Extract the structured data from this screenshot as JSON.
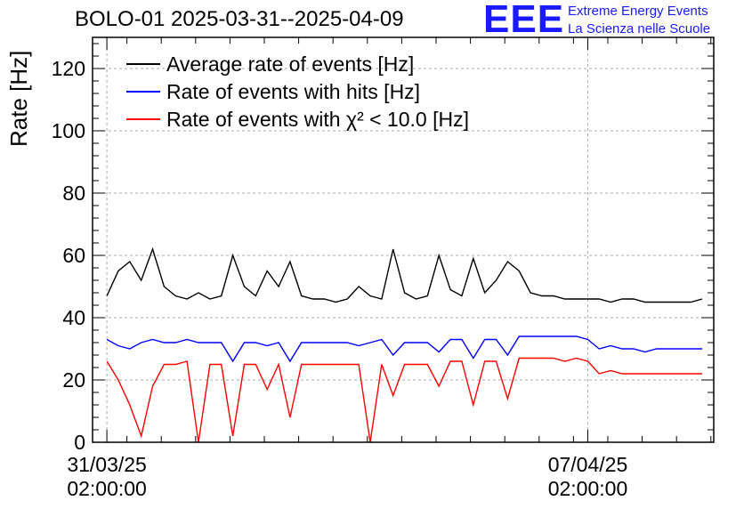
{
  "title": "BOLO-01 2025-03-31--2025-04-09",
  "logo": {
    "letters": "EEE",
    "line1": "Extreme Energy Events",
    "line2": "La Scienza nelle Scuole",
    "color": "#1a1aff"
  },
  "chart_data": {
    "type": "line",
    "title": "BOLO-01 2025-03-31--2025-04-09",
    "xlabel": "",
    "ylabel": "Rate [Hz]",
    "ylim": [
      0,
      130
    ],
    "yticks": [
      0,
      20,
      40,
      60,
      80,
      100,
      120
    ],
    "x_range_days": [
      "2025-03-30 21:00",
      "2025-04-08 22:00"
    ],
    "xticks": [
      {
        "label_line1": "31/03/25",
        "label_line2": "02:00:00",
        "datetime": "2025-03-31 02:00:00"
      },
      {
        "label_line1": "07/04/25",
        "label_line2": "02:00:00",
        "datetime": "2025-04-07 02:00:00"
      }
    ],
    "grid": true,
    "legend_position": "top-left",
    "series": [
      {
        "name": "Average rate of events [Hz]",
        "color": "#000000",
        "x": [
          "2025-03-31 02:00",
          "2025-03-31 06:00",
          "2025-03-31 10:00",
          "2025-03-31 14:00",
          "2025-03-31 18:00",
          "2025-03-31 22:00",
          "2025-04-01 02:00",
          "2025-04-01 06:00",
          "2025-04-01 10:00",
          "2025-04-01 14:00",
          "2025-04-01 18:00",
          "2025-04-01 22:00",
          "2025-04-02 02:00",
          "2025-04-02 06:00",
          "2025-04-02 10:00",
          "2025-04-02 14:00",
          "2025-04-02 18:00",
          "2025-04-02 22:00",
          "2025-04-03 02:00",
          "2025-04-03 06:00",
          "2025-04-03 10:00",
          "2025-04-03 14:00",
          "2025-04-03 18:00",
          "2025-04-03 22:00",
          "2025-04-04 02:00",
          "2025-04-04 06:00",
          "2025-04-04 10:00",
          "2025-04-04 14:00",
          "2025-04-04 18:00",
          "2025-04-04 22:00",
          "2025-04-05 02:00",
          "2025-04-05 06:00",
          "2025-04-05 10:00",
          "2025-04-05 14:00",
          "2025-04-05 18:00",
          "2025-04-05 22:00",
          "2025-04-06 02:00",
          "2025-04-06 06:00",
          "2025-04-06 10:00",
          "2025-04-06 14:00",
          "2025-04-06 18:00",
          "2025-04-06 22:00",
          "2025-04-07 02:00",
          "2025-04-07 06:00",
          "2025-04-07 10:00",
          "2025-04-07 14:00",
          "2025-04-07 18:00",
          "2025-04-07 22:00",
          "2025-04-08 02:00",
          "2025-04-08 06:00",
          "2025-04-08 10:00",
          "2025-04-08 14:00",
          "2025-04-08 18:00"
        ],
        "values": [
          47,
          55,
          58,
          52,
          62,
          50,
          47,
          46,
          48,
          46,
          47,
          60,
          50,
          47,
          55,
          50,
          58,
          47,
          46,
          46,
          45,
          46,
          50,
          47,
          46,
          62,
          48,
          46,
          47,
          60,
          49,
          47,
          59,
          48,
          52,
          58,
          55,
          48,
          47,
          47,
          46,
          46,
          46,
          46,
          45,
          46,
          46,
          45,
          45,
          45,
          45,
          45,
          46
        ]
      },
      {
        "name": "Rate of events with hits [Hz]",
        "color": "#0000ff",
        "x": [
          "2025-03-31 02:00",
          "2025-03-31 06:00",
          "2025-03-31 10:00",
          "2025-03-31 14:00",
          "2025-03-31 18:00",
          "2025-03-31 22:00",
          "2025-04-01 02:00",
          "2025-04-01 06:00",
          "2025-04-01 10:00",
          "2025-04-01 14:00",
          "2025-04-01 18:00",
          "2025-04-01 22:00",
          "2025-04-02 02:00",
          "2025-04-02 06:00",
          "2025-04-02 10:00",
          "2025-04-02 14:00",
          "2025-04-02 18:00",
          "2025-04-02 22:00",
          "2025-04-03 02:00",
          "2025-04-03 06:00",
          "2025-04-03 10:00",
          "2025-04-03 14:00",
          "2025-04-03 18:00",
          "2025-04-03 22:00",
          "2025-04-04 02:00",
          "2025-04-04 06:00",
          "2025-04-04 10:00",
          "2025-04-04 14:00",
          "2025-04-04 18:00",
          "2025-04-04 22:00",
          "2025-04-05 02:00",
          "2025-04-05 06:00",
          "2025-04-05 10:00",
          "2025-04-05 14:00",
          "2025-04-05 18:00",
          "2025-04-05 22:00",
          "2025-04-06 02:00",
          "2025-04-06 06:00",
          "2025-04-06 10:00",
          "2025-04-06 14:00",
          "2025-04-06 18:00",
          "2025-04-06 22:00",
          "2025-04-07 02:00",
          "2025-04-07 06:00",
          "2025-04-07 10:00",
          "2025-04-07 14:00",
          "2025-04-07 18:00",
          "2025-04-07 22:00",
          "2025-04-08 02:00",
          "2025-04-08 06:00",
          "2025-04-08 10:00",
          "2025-04-08 14:00",
          "2025-04-08 18:00"
        ],
        "values": [
          33,
          31,
          30,
          32,
          33,
          32,
          32,
          33,
          32,
          32,
          32,
          26,
          32,
          32,
          31,
          32,
          26,
          32,
          32,
          32,
          32,
          32,
          31,
          32,
          33,
          28,
          32,
          32,
          32,
          29,
          33,
          33,
          27,
          33,
          33,
          28,
          34,
          34,
          34,
          34,
          34,
          34,
          33,
          30,
          31,
          30,
          30,
          29,
          30,
          30,
          30,
          30,
          30
        ]
      },
      {
        "name": "Rate of events with χ² < 10.0 [Hz]",
        "color": "#ff0000",
        "x": [
          "2025-03-31 02:00",
          "2025-03-31 06:00",
          "2025-03-31 10:00",
          "2025-03-31 14:00",
          "2025-03-31 18:00",
          "2025-03-31 22:00",
          "2025-04-01 02:00",
          "2025-04-01 06:00",
          "2025-04-01 10:00",
          "2025-04-01 14:00",
          "2025-04-01 18:00",
          "2025-04-01 22:00",
          "2025-04-02 02:00",
          "2025-04-02 06:00",
          "2025-04-02 10:00",
          "2025-04-02 14:00",
          "2025-04-02 18:00",
          "2025-04-02 22:00",
          "2025-04-03 02:00",
          "2025-04-03 06:00",
          "2025-04-03 10:00",
          "2025-04-03 14:00",
          "2025-04-03 18:00",
          "2025-04-03 22:00",
          "2025-04-04 02:00",
          "2025-04-04 06:00",
          "2025-04-04 10:00",
          "2025-04-04 14:00",
          "2025-04-04 18:00",
          "2025-04-04 22:00",
          "2025-04-05 02:00",
          "2025-04-05 06:00",
          "2025-04-05 10:00",
          "2025-04-05 14:00",
          "2025-04-05 18:00",
          "2025-04-05 22:00",
          "2025-04-06 02:00",
          "2025-04-06 06:00",
          "2025-04-06 10:00",
          "2025-04-06 14:00",
          "2025-04-06 18:00",
          "2025-04-06 22:00",
          "2025-04-07 02:00",
          "2025-04-07 06:00",
          "2025-04-07 10:00",
          "2025-04-07 14:00",
          "2025-04-07 18:00",
          "2025-04-07 22:00",
          "2025-04-08 02:00",
          "2025-04-08 06:00",
          "2025-04-08 10:00",
          "2025-04-08 14:00",
          "2025-04-08 18:00"
        ],
        "values": [
          26,
          20,
          12,
          2,
          18,
          25,
          25,
          26,
          0,
          25,
          25,
          2,
          25,
          25,
          17,
          25,
          8,
          25,
          25,
          25,
          25,
          25,
          25,
          0,
          25,
          15,
          25,
          25,
          25,
          18,
          26,
          26,
          12,
          26,
          26,
          14,
          27,
          27,
          27,
          27,
          26,
          27,
          26,
          22,
          23,
          22,
          22,
          22,
          22,
          22,
          22,
          22,
          22
        ]
      }
    ]
  }
}
